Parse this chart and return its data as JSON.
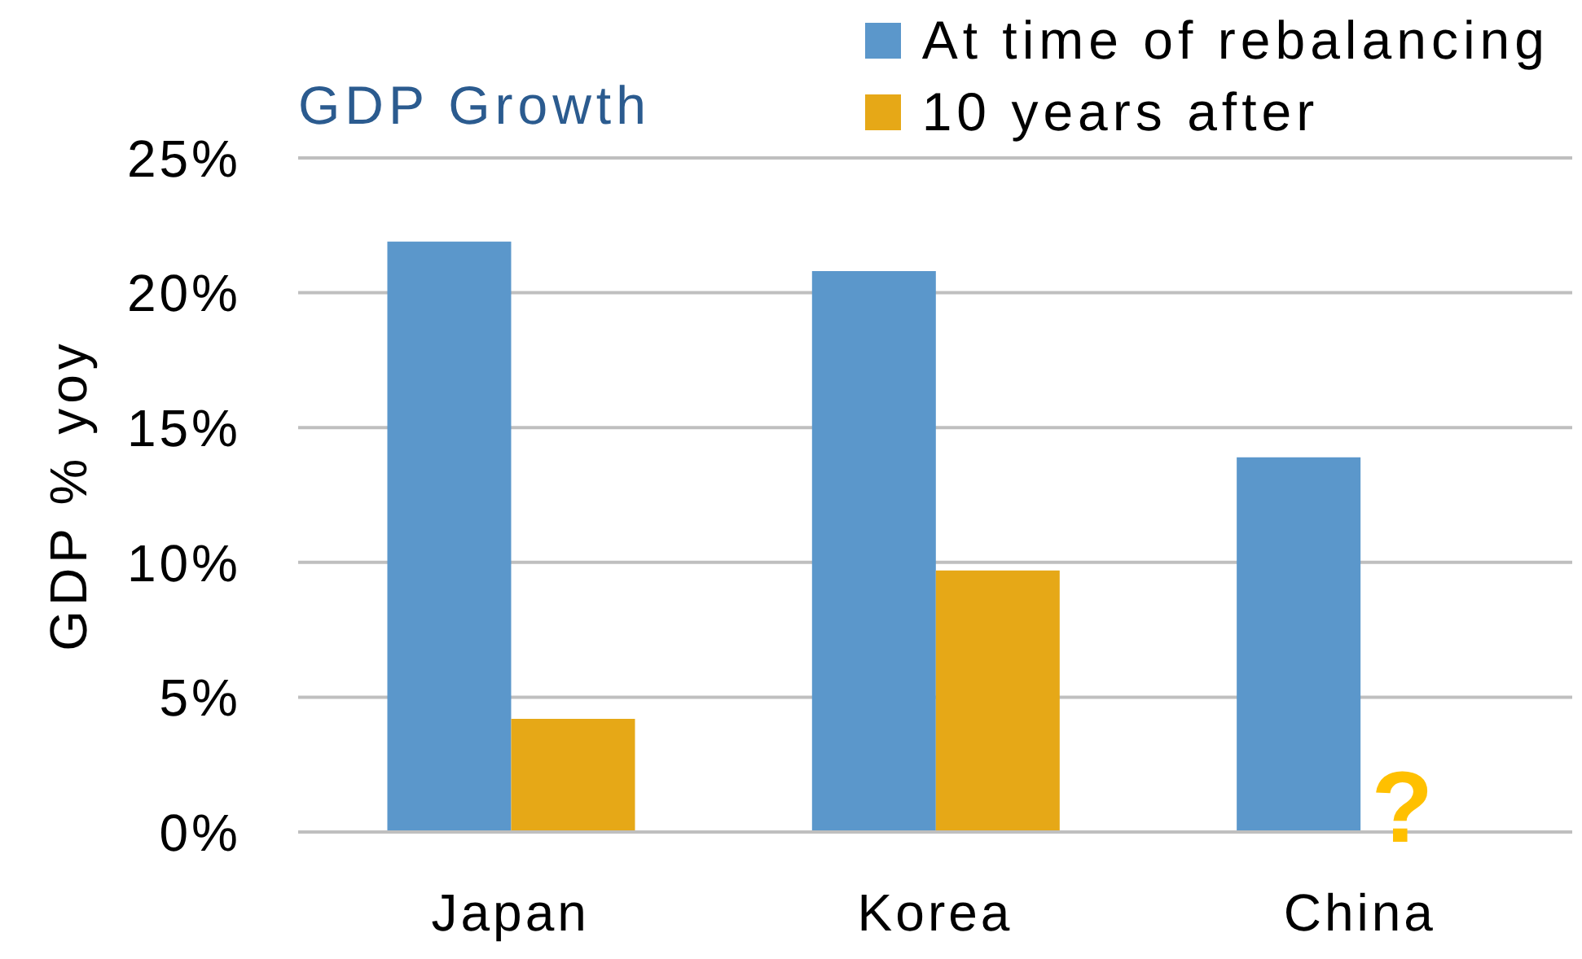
{
  "chart_data": {
    "type": "bar",
    "title": "GDP Growth",
    "ylabel": "GDP % yoy",
    "categories": [
      "Japan",
      "Korea",
      "China"
    ],
    "series": [
      {
        "name": "At time of rebalancing",
        "color": "#5b97cb",
        "values": [
          21.9,
          20.8,
          13.9
        ]
      },
      {
        "name": "10 years after",
        "color": "#e6a817",
        "values": [
          4.2,
          9.7,
          null
        ]
      }
    ],
    "ylim": [
      0,
      25
    ],
    "yticks": [
      {
        "value": 0,
        "label": "0%"
      },
      {
        "value": 5,
        "label": "5%"
      },
      {
        "value": 10,
        "label": "10%"
      },
      {
        "value": 15,
        "label": "15%"
      },
      {
        "value": 20,
        "label": "20%"
      },
      {
        "value": 25,
        "label": "25%"
      }
    ],
    "grid": "y",
    "legend": "top right",
    "annotations": [
      {
        "text": "?",
        "x": "China",
        "y": 1
      }
    ]
  }
}
